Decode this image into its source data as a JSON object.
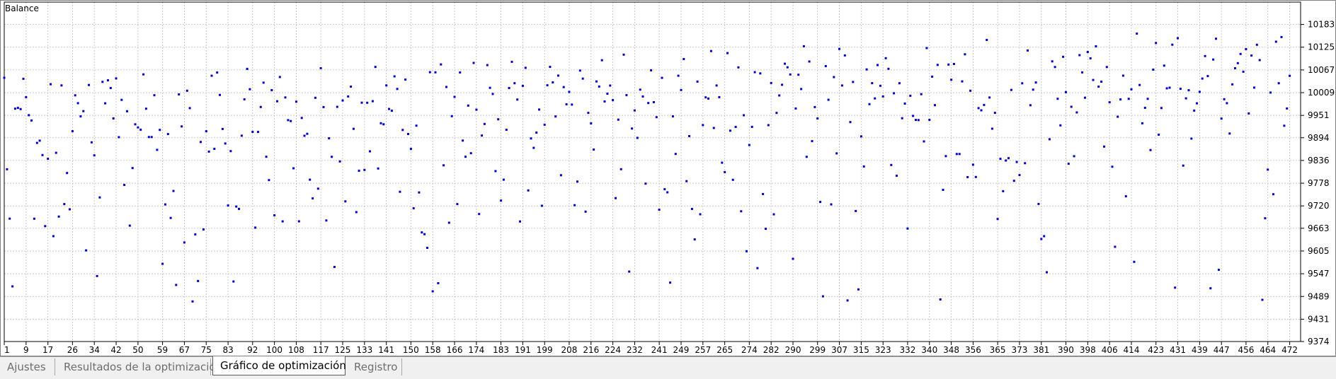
{
  "chart_title": "Balance",
  "tabs": [
    {
      "label": "Ajustes",
      "active": false
    },
    {
      "label": "Resultados de la optimización",
      "active": false
    },
    {
      "label": "Gráfico de optimización",
      "active": true
    },
    {
      "label": "Registro",
      "active": false
    }
  ],
  "chart_data": {
    "type": "scatter",
    "title": "Balance",
    "xlabel": "",
    "ylabel": "",
    "xlim": [
      1,
      476
    ],
    "ylim": [
      9374,
      10240
    ],
    "x_ticks": [
      1,
      9,
      17,
      26,
      34,
      42,
      50,
      59,
      67,
      75,
      83,
      92,
      100,
      108,
      117,
      125,
      133,
      141,
      150,
      158,
      166,
      174,
      183,
      191,
      199,
      208,
      216,
      224,
      232,
      241,
      249,
      257,
      265,
      274,
      282,
      290,
      299,
      307,
      315,
      323,
      332,
      340,
      348,
      356,
      365,
      373,
      381,
      390,
      398,
      406,
      414,
      423,
      431,
      439,
      447,
      456,
      464,
      472
    ],
    "y_ticks": [
      9374,
      9431,
      9489,
      9547,
      9605,
      9663,
      9720,
      9778,
      9836,
      9894,
      9951,
      10009,
      10067,
      10125,
      10183
    ],
    "grid": true,
    "point_color": "#0000c8",
    "seed": 20240601,
    "point_count": 472
  },
  "colors": {
    "grid": "#c8c8c8",
    "axis": "#000000",
    "points": "#0000c8"
  }
}
